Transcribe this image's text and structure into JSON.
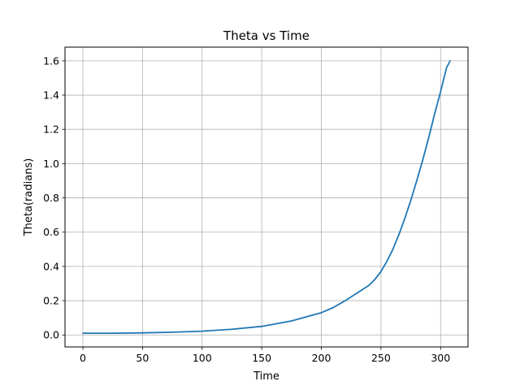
{
  "chart_data": {
    "type": "line",
    "title": "Theta vs Time",
    "xlabel": "Time",
    "ylabel": "Theta(radians)",
    "xlim": [
      -15,
      323
    ],
    "ylim": [
      -0.07,
      1.68
    ],
    "xticks": [
      0,
      50,
      100,
      150,
      200,
      250,
      300
    ],
    "yticks": [
      0.0,
      0.2,
      0.4,
      0.6,
      0.8,
      1.0,
      1.2,
      1.4,
      1.6
    ],
    "xtick_labels": [
      "0",
      "50",
      "100",
      "150",
      "200",
      "250",
      "300"
    ],
    "ytick_labels": [
      "0.0",
      "0.2",
      "0.4",
      "0.6",
      "0.8",
      "1.0",
      "1.2",
      "1.4",
      "1.6"
    ],
    "grid": true,
    "series": [
      {
        "color": "#1f77b4",
        "x": [
          0,
          25,
          50,
          75,
          100,
          125,
          150,
          175,
          200,
          210,
          220,
          230,
          240,
          245,
          250,
          255,
          260,
          265,
          270,
          275,
          280,
          285,
          290,
          295,
          300,
          305,
          308
        ],
        "y": [
          0.01,
          0.01,
          0.012,
          0.016,
          0.022,
          0.033,
          0.05,
          0.082,
          0.13,
          0.16,
          0.2,
          0.245,
          0.29,
          0.325,
          0.37,
          0.43,
          0.5,
          0.585,
          0.68,
          0.785,
          0.9,
          1.02,
          1.15,
          1.29,
          1.42,
          1.56,
          1.6
        ]
      }
    ]
  }
}
